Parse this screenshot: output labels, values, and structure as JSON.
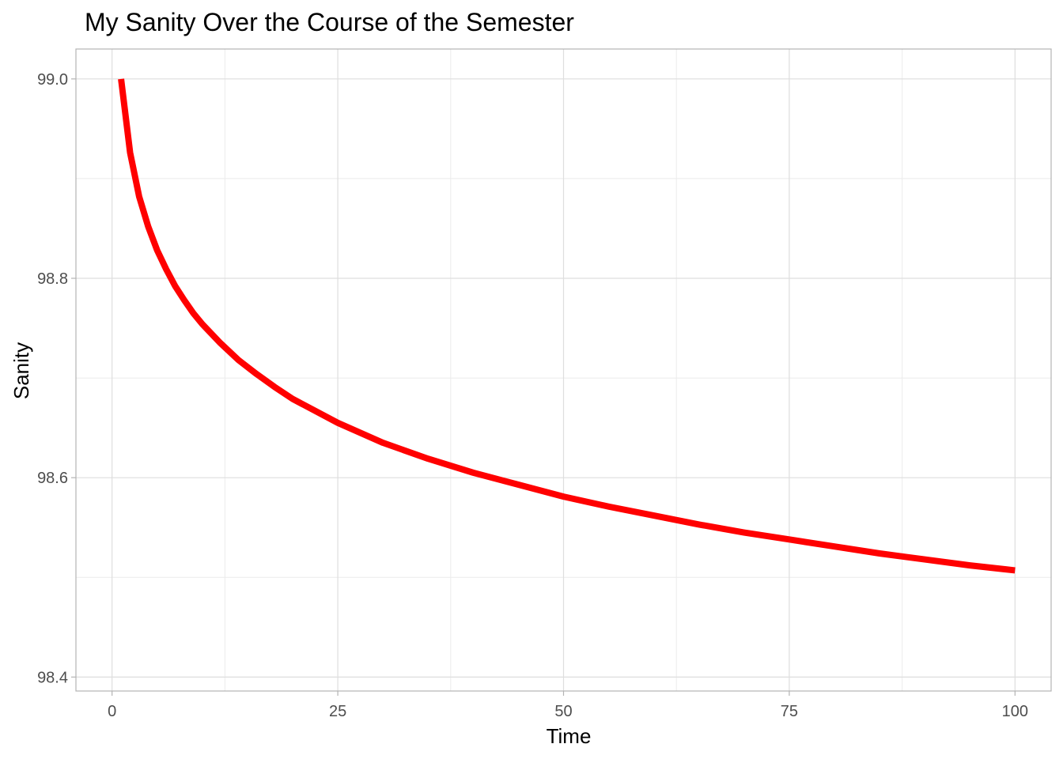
{
  "chart_data": {
    "type": "line",
    "title": "My Sanity Over the Course of the Semester",
    "xlabel": "Time",
    "ylabel": "Sanity",
    "xlim": [
      -4,
      104
    ],
    "ylim": [
      98.386,
      99.03
    ],
    "x_ticks": [
      0,
      25,
      50,
      75,
      100
    ],
    "x_tick_labels": [
      "0",
      "25",
      "50",
      "75",
      "100"
    ],
    "y_ticks": [
      98.4,
      98.6,
      98.8,
      99.0
    ],
    "y_tick_labels": [
      "98.4",
      "98.6",
      "98.8",
      "99.0"
    ],
    "grid": true,
    "series": [
      {
        "color": "#ff0000",
        "x": [
          1,
          2,
          3,
          4,
          5,
          6,
          7,
          8,
          9,
          10,
          12,
          14,
          16,
          18,
          20,
          25,
          30,
          35,
          40,
          45,
          50,
          55,
          60,
          65,
          70,
          75,
          80,
          85,
          90,
          95,
          100
        ],
        "y": [
          99.0,
          98.926,
          98.882,
          98.852,
          98.828,
          98.809,
          98.792,
          98.778,
          98.765,
          98.754,
          98.735,
          98.718,
          98.704,
          98.691,
          98.679,
          98.655,
          98.635,
          98.619,
          98.605,
          98.593,
          98.581,
          98.571,
          98.562,
          98.553,
          98.545,
          98.538,
          98.531,
          98.524,
          98.518,
          98.512,
          98.507
        ]
      }
    ]
  }
}
